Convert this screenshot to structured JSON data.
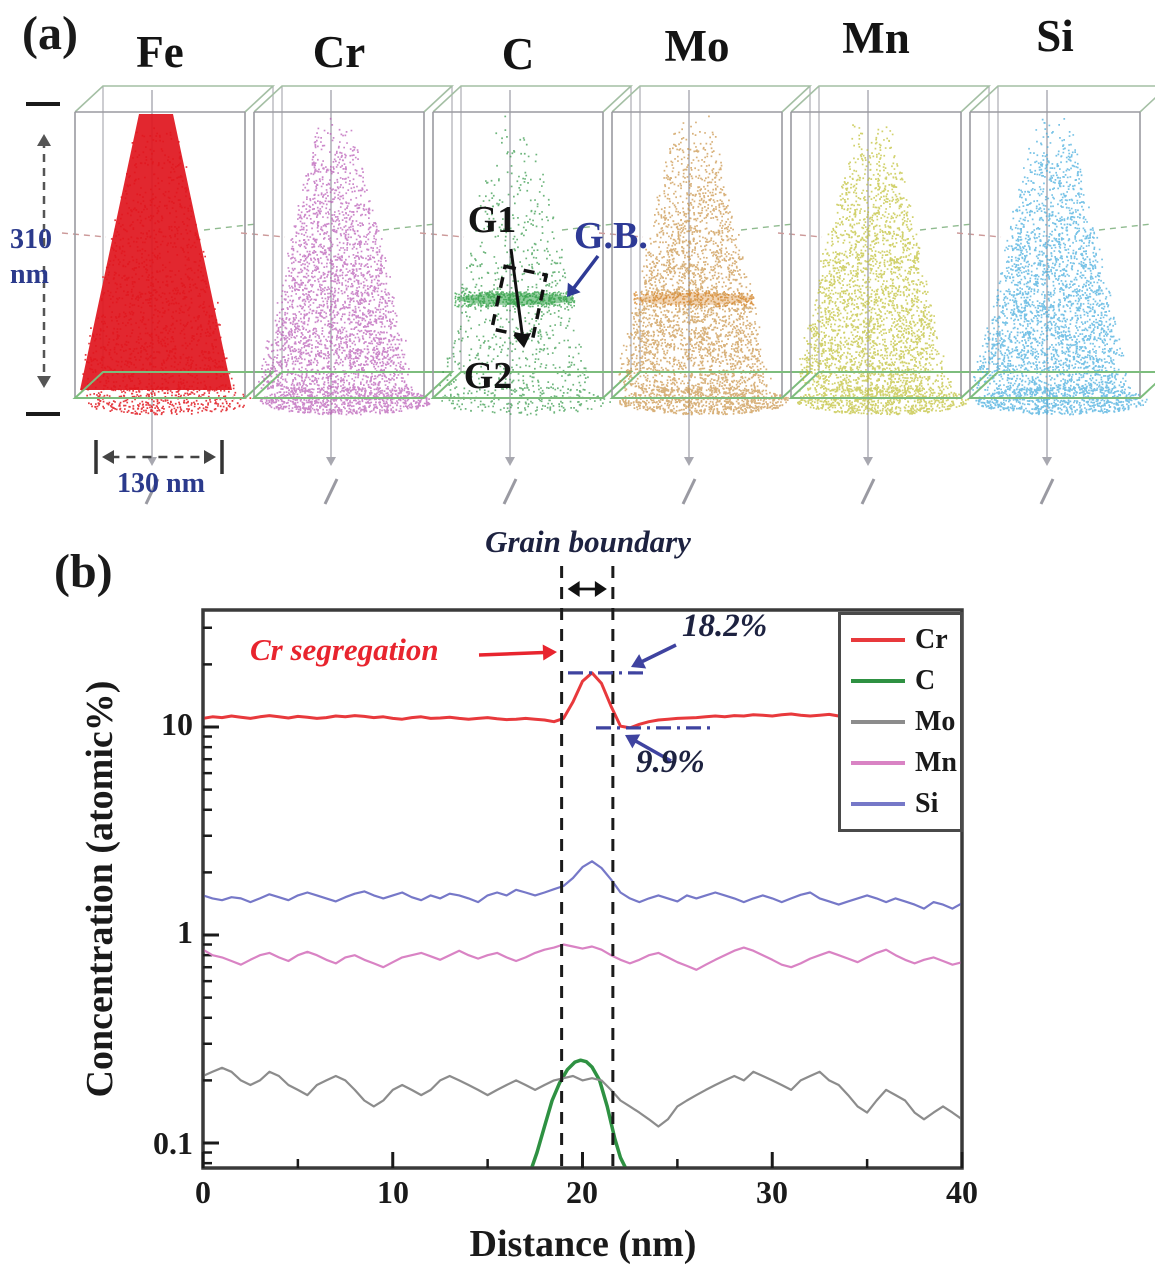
{
  "figure": {
    "background": "#ffffff"
  },
  "panel_a": {
    "label": "(a)",
    "height_dimension": "310 nm",
    "width_dimension": "130 nm",
    "grain_labels": {
      "g1": "G1",
      "gb": "G.B.",
      "g2": "G2"
    },
    "elements": [
      {
        "symbol": "Fe",
        "color": "#e0171f",
        "render": "solid"
      },
      {
        "symbol": "Cr",
        "color": "#b95ab5",
        "render": "dense"
      },
      {
        "symbol": "C",
        "color": "#35984a",
        "render": "sparse",
        "gb_band": true
      },
      {
        "symbol": "Mo",
        "color": "#c99347",
        "render": "dense",
        "gb_band": true
      },
      {
        "symbol": "Mn",
        "color": "#bfbf33",
        "render": "dense"
      },
      {
        "symbol": "Si",
        "color": "#41aadc",
        "render": "dense"
      }
    ]
  },
  "panel_b": {
    "label": "(b)"
  },
  "chart_data": {
    "type": "line",
    "title": "",
    "xlabel": "Distance (nm)",
    "ylabel": "Concentration (atomic%)",
    "yscale": "log",
    "xlim": [
      0,
      40
    ],
    "ylim": [
      0.076,
      36.5
    ],
    "x_ticks": [
      0,
      10,
      20,
      30,
      40
    ],
    "x_tick_labels": [
      "0",
      "10",
      "20",
      "30",
      "40"
    ],
    "x_minor_ticks": [
      5,
      15,
      25,
      35
    ],
    "y_ticks": [
      10,
      1,
      0.1
    ],
    "y_tick_labels": [
      "10",
      "1",
      "0.1"
    ],
    "grid": false,
    "legend_position": "top-right",
    "annotations": {
      "grain_boundary": {
        "label": "Grain boundary",
        "x_start_nm": 18.9,
        "x_end_nm": 21.6
      },
      "cr_segregation": {
        "label": "Cr segregation",
        "color": "#e8242e"
      },
      "gb_peak": {
        "label": "18.2%",
        "value_atomic_pct": 18.2
      },
      "gb_dip": {
        "label": "9.9%",
        "value_atomic_pct": 9.9
      },
      "annotation_color": "#3f43a0"
    },
    "series": [
      {
        "name": "Cr",
        "color": "#e8393c",
        "x_start": 0,
        "x_step": 0.5,
        "y": [
          11.0,
          11.2,
          11.1,
          11.3,
          11.15,
          11.0,
          11.2,
          11.35,
          11.2,
          11.05,
          11.25,
          11.15,
          11.0,
          11.1,
          11.3,
          11.2,
          11.35,
          11.25,
          11.1,
          11.2,
          11.0,
          10.9,
          11.1,
          11.2,
          11.0,
          11.05,
          11.15,
          11.0,
          10.9,
          11.0,
          11.1,
          10.95,
          10.85,
          10.9,
          11.0,
          10.9,
          10.8,
          10.6,
          11.0,
          13.2,
          16.6,
          18.2,
          16.2,
          12.6,
          10.1,
          9.9,
          10.3,
          10.6,
          10.8,
          10.9,
          11.0,
          11.05,
          11.1,
          11.2,
          11.3,
          11.2,
          11.35,
          11.3,
          11.45,
          11.4,
          11.3,
          11.45,
          11.55,
          11.4,
          11.3,
          11.4,
          11.5,
          11.3,
          11.25,
          11.4,
          11.5,
          11.55,
          11.4,
          11.45,
          11.55,
          11.5,
          11.4,
          11.45,
          11.5,
          11.45,
          11.4
        ]
      },
      {
        "name": "C",
        "color": "#2e9142",
        "x": [
          17.3,
          17.6,
          18.0,
          18.4,
          18.8,
          19.2,
          19.6,
          19.9,
          20.2,
          20.5,
          20.9,
          21.3,
          21.7,
          22.0,
          22.3
        ],
        "y": [
          0.075,
          0.09,
          0.12,
          0.16,
          0.195,
          0.225,
          0.245,
          0.25,
          0.246,
          0.232,
          0.2,
          0.15,
          0.105,
          0.085,
          0.075
        ]
      },
      {
        "name": "Mo",
        "color": "#8c8c8c",
        "x_start": 0,
        "x_step": 0.5,
        "y": [
          0.21,
          0.22,
          0.23,
          0.22,
          0.2,
          0.19,
          0.2,
          0.22,
          0.21,
          0.19,
          0.18,
          0.17,
          0.19,
          0.2,
          0.21,
          0.2,
          0.18,
          0.16,
          0.15,
          0.16,
          0.18,
          0.19,
          0.18,
          0.17,
          0.18,
          0.2,
          0.21,
          0.2,
          0.19,
          0.18,
          0.17,
          0.18,
          0.19,
          0.2,
          0.19,
          0.18,
          0.19,
          0.2,
          0.205,
          0.21,
          0.2,
          0.205,
          0.2,
          0.18,
          0.16,
          0.15,
          0.14,
          0.13,
          0.12,
          0.13,
          0.15,
          0.16,
          0.17,
          0.18,
          0.19,
          0.2,
          0.21,
          0.2,
          0.22,
          0.21,
          0.2,
          0.19,
          0.18,
          0.2,
          0.21,
          0.22,
          0.2,
          0.19,
          0.17,
          0.15,
          0.14,
          0.16,
          0.18,
          0.17,
          0.16,
          0.14,
          0.13,
          0.14,
          0.15,
          0.14,
          0.13
        ]
      },
      {
        "name": "Mn",
        "color": "#d983c4",
        "x_start": 0,
        "x_step": 0.5,
        "y": [
          0.85,
          0.8,
          0.78,
          0.75,
          0.72,
          0.76,
          0.8,
          0.82,
          0.78,
          0.75,
          0.8,
          0.83,
          0.8,
          0.76,
          0.73,
          0.78,
          0.8,
          0.76,
          0.73,
          0.7,
          0.74,
          0.78,
          0.8,
          0.82,
          0.79,
          0.76,
          0.8,
          0.84,
          0.8,
          0.77,
          0.8,
          0.82,
          0.78,
          0.75,
          0.78,
          0.82,
          0.85,
          0.87,
          0.9,
          0.88,
          0.86,
          0.88,
          0.85,
          0.8,
          0.76,
          0.73,
          0.76,
          0.8,
          0.82,
          0.78,
          0.74,
          0.71,
          0.68,
          0.72,
          0.76,
          0.8,
          0.84,
          0.87,
          0.84,
          0.8,
          0.76,
          0.72,
          0.7,
          0.73,
          0.77,
          0.8,
          0.83,
          0.8,
          0.77,
          0.74,
          0.78,
          0.82,
          0.85,
          0.8,
          0.76,
          0.73,
          0.76,
          0.78,
          0.75,
          0.72,
          0.74
        ]
      },
      {
        "name": "Si",
        "color": "#7678c8",
        "x_start": 0,
        "x_step": 0.5,
        "y": [
          1.55,
          1.5,
          1.47,
          1.52,
          1.5,
          1.44,
          1.5,
          1.57,
          1.52,
          1.47,
          1.55,
          1.6,
          1.55,
          1.5,
          1.45,
          1.52,
          1.58,
          1.62,
          1.55,
          1.5,
          1.55,
          1.6,
          1.52,
          1.47,
          1.55,
          1.5,
          1.58,
          1.55,
          1.5,
          1.44,
          1.55,
          1.6,
          1.55,
          1.65,
          1.6,
          1.55,
          1.6,
          1.66,
          1.72,
          1.88,
          2.12,
          2.26,
          2.1,
          1.85,
          1.6,
          1.5,
          1.44,
          1.5,
          1.55,
          1.5,
          1.45,
          1.55,
          1.5,
          1.55,
          1.6,
          1.55,
          1.5,
          1.44,
          1.5,
          1.55,
          1.5,
          1.44,
          1.5,
          1.56,
          1.6,
          1.5,
          1.45,
          1.4,
          1.45,
          1.5,
          1.55,
          1.5,
          1.44,
          1.5,
          1.45,
          1.4,
          1.34,
          1.44,
          1.4,
          1.34,
          1.42
        ]
      }
    ]
  }
}
